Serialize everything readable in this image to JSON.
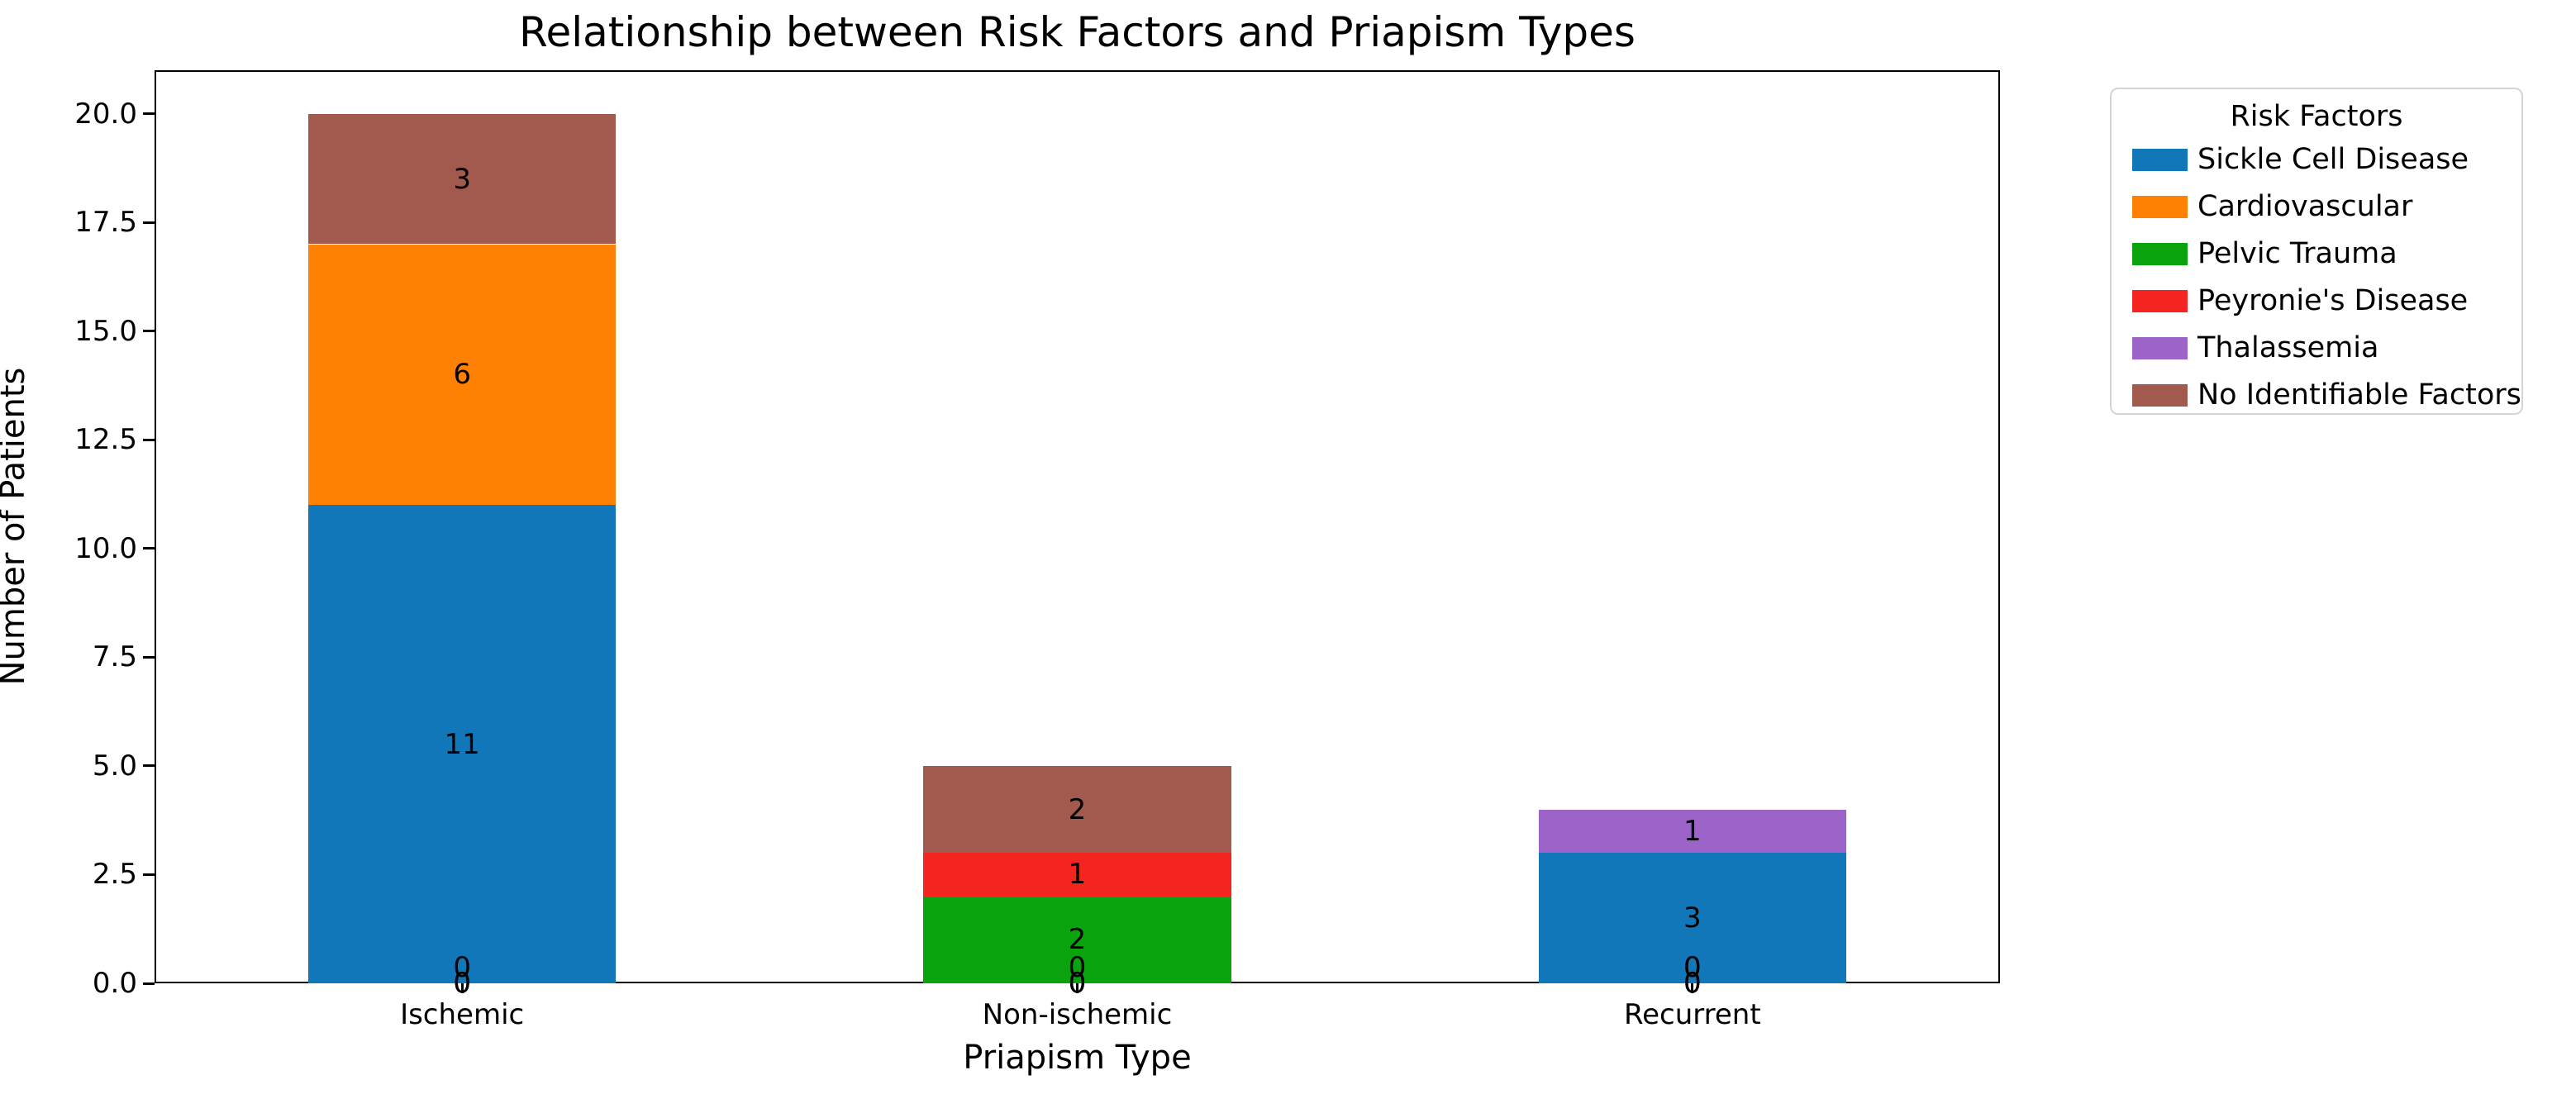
{
  "title": "Relationship between Risk Factors and Priapism Types",
  "chart_data": {
    "type": "bar",
    "stacked": true,
    "title": "Relationship between Risk Factors and Priapism Types",
    "xlabel": "Priapism Type",
    "ylabel": "Number of Patients",
    "categories": [
      "Ischemic",
      "Non-ischemic",
      "Recurrent"
    ],
    "series": [
      {
        "name": "Sickle Cell Disease",
        "color": "#1277b8",
        "values": [
          11,
          0,
          3
        ]
      },
      {
        "name": "Cardiovascular",
        "color": "#ff8104",
        "values": [
          6,
          0,
          0
        ]
      },
      {
        "name": "Pelvic Trauma",
        "color": "#0aa30e",
        "values": [
          0,
          2,
          0
        ]
      },
      {
        "name": "Peyronie's Disease",
        "color": "#f42420",
        "values": [
          0,
          1,
          0
        ]
      },
      {
        "name": "Thalassemia",
        "color": "#9c64c9",
        "values": [
          0,
          0,
          1
        ]
      },
      {
        "name": "No Identifiable Factors",
        "color": "#a35a4e",
        "values": [
          3,
          2,
          0
        ]
      }
    ],
    "totals": [
      20,
      5,
      4
    ],
    "ylim": [
      0,
      21
    ],
    "yticks": [
      "0.0",
      "2.5",
      "5.0",
      "7.5",
      "10.0",
      "12.5",
      "15.0",
      "17.5",
      "20.0"
    ],
    "ytick_values": [
      0,
      2.5,
      5,
      7.5,
      10,
      12.5,
      15,
      17.5,
      20
    ],
    "legend_title": "Risk Factors",
    "legend_position": "outside upper right",
    "grid": false,
    "bar_value_labels": true,
    "zero_label_text": "0"
  }
}
